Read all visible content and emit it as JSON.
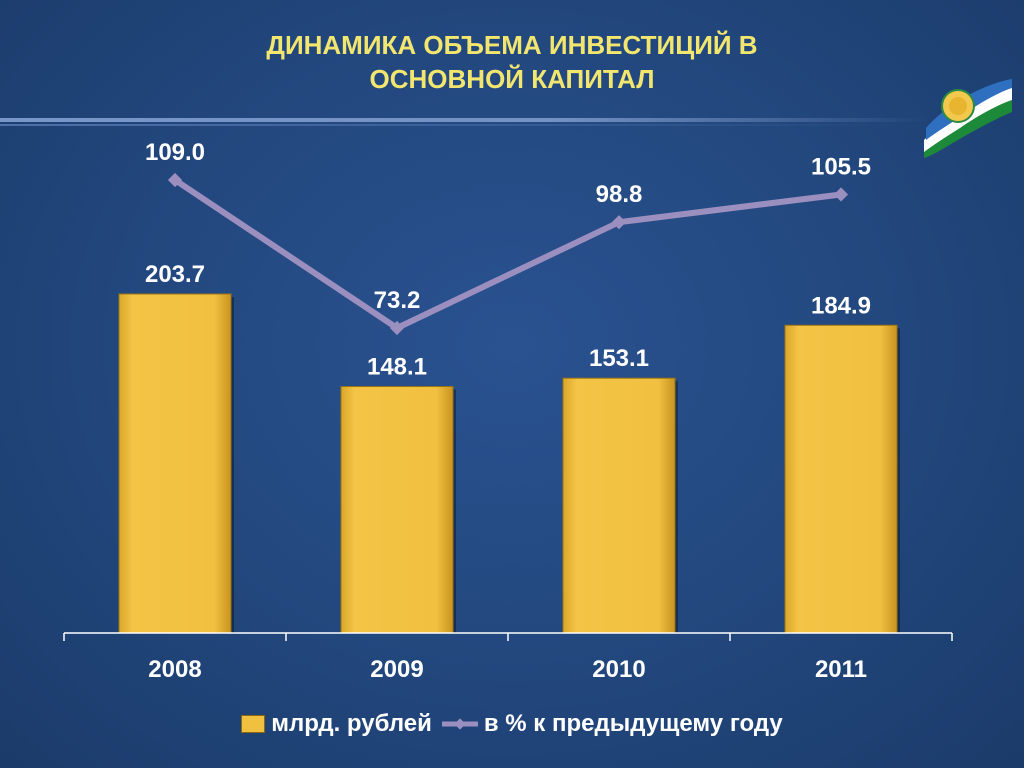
{
  "slide": {
    "title_line1": "ДИНАМИКА ОБЪЕМА ИНВЕСТИЦИЙ В",
    "title_line2": "ОСНОВНОЙ КАПИТАЛ"
  },
  "colors": {
    "background": "#22477d",
    "title": "#f3e66e",
    "bar": "#f0c040",
    "line": "#9b8fbf",
    "text": "#ffffff"
  },
  "emblem": {
    "icon": "bashkortostan-flag-emblem"
  },
  "chart_data": {
    "type": "bar",
    "categories": [
      "2008",
      "2009",
      "2010",
      "2011"
    ],
    "series": [
      {
        "name": "млрд. рублей",
        "type": "bar",
        "values": [
          203.7,
          148.1,
          153.1,
          184.9
        ],
        "labels": [
          "203.7",
          "148.1",
          "153.1",
          "184.9"
        ]
      },
      {
        "name": "в % к предыдущему году",
        "type": "line",
        "values": [
          109.0,
          73.2,
          98.8,
          105.5
        ],
        "labels": [
          "109.0",
          "73.2",
          "98.8",
          "105.5"
        ]
      }
    ],
    "legend": "bottom",
    "grid": false
  }
}
